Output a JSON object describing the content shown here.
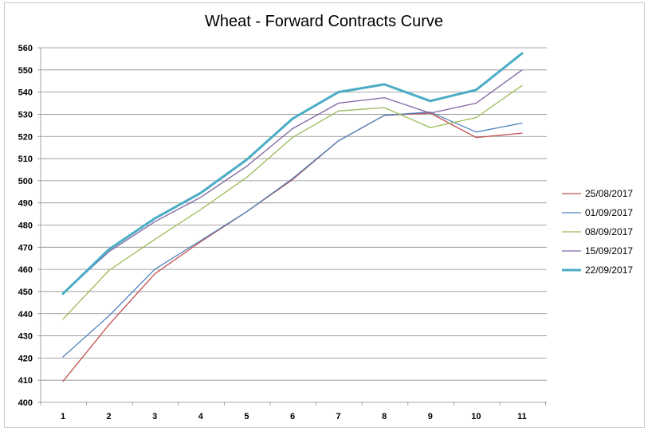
{
  "chart_data": {
    "type": "line",
    "title": "Wheat - Forward  Contracts Curve",
    "xlabel": "",
    "ylabel": "",
    "x": [
      1,
      2,
      3,
      4,
      5,
      6,
      7,
      8,
      9,
      10,
      11
    ],
    "x_tick_labels": [
      "1",
      "2",
      "3",
      "4",
      "5",
      "6",
      "7",
      "8",
      "9",
      "10",
      "11"
    ],
    "ylim": [
      400,
      560
    ],
    "y_ticks": [
      400,
      410,
      420,
      430,
      440,
      450,
      460,
      470,
      480,
      490,
      500,
      510,
      520,
      530,
      540,
      550,
      560
    ],
    "grid": "horizontal",
    "legend_position": "right",
    "series": [
      {
        "name": "25/08/2017",
        "color": "#c0504d",
        "width": 1.3,
        "values": [
          409.5,
          435,
          458,
          472.5,
          486,
          500.5,
          518,
          529.5,
          530.5,
          519.5,
          521.5
        ]
      },
      {
        "name": "01/09/2017",
        "color": "#4f81bd",
        "width": 1.3,
        "values": [
          420.5,
          439,
          460,
          473,
          486,
          501,
          518,
          529.5,
          531,
          522,
          526
        ]
      },
      {
        "name": "08/09/2017",
        "color": "#9bbb59",
        "width": 1.3,
        "values": [
          437.5,
          459.5,
          473.5,
          487,
          501.5,
          519.5,
          531.5,
          533,
          524,
          528.5,
          543
        ]
      },
      {
        "name": "15/09/2017",
        "color": "#8064a2",
        "width": 1.3,
        "values": [
          449,
          468,
          481.5,
          492.5,
          506.5,
          523.5,
          535,
          537.5,
          530.5,
          535,
          550
        ]
      },
      {
        "name": "22/09/2017",
        "color": "#4bacc6",
        "width": 3,
        "values": [
          449,
          469,
          483,
          494.5,
          509.5,
          528,
          540,
          543.5,
          536,
          541,
          557.5
        ]
      }
    ]
  }
}
